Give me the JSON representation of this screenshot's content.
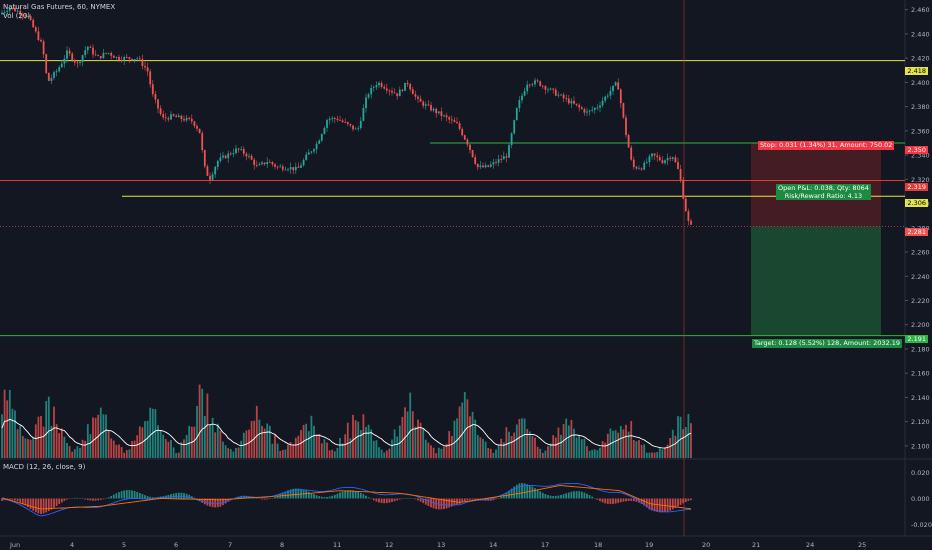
{
  "header": {
    "symbol": "Natural Gas Futures, 60, NYMEX",
    "volume_label": "Vol (20)"
  },
  "macd_label": "MACD (12, 26, close, 9)",
  "price_axis": {
    "ticks": [
      "2.460",
      "2.440",
      "2.420",
      "2.400",
      "2.380",
      "2.360",
      "2.340",
      "2.320",
      "2.300",
      "2.280",
      "2.260",
      "2.240",
      "2.220",
      "2.200",
      "2.180",
      "2.160",
      "2.140",
      "2.120",
      "2.100"
    ],
    "tick_values": [
      2.46,
      2.44,
      2.42,
      2.4,
      2.38,
      2.36,
      2.34,
      2.32,
      2.3,
      2.28,
      2.26,
      2.24,
      2.22,
      2.2,
      2.18,
      2.16,
      2.14,
      2.12,
      2.1
    ],
    "ymin": 2.09,
    "ymax": 2.468
  },
  "macd_axis": {
    "ticks": [
      "0.020",
      "0.000",
      "-0.020"
    ],
    "tick_values": [
      0.02,
      0.0,
      -0.02
    ]
  },
  "time_axis": {
    "labels": [
      "Jun",
      "4",
      "5",
      "6",
      "7",
      "8",
      "11",
      "12",
      "13",
      "14",
      "17",
      "18",
      "19",
      "20",
      "21",
      "24",
      "25"
    ]
  },
  "levels": {
    "upper_yellow": {
      "value": 2.418,
      "label": "2.418"
    },
    "red_line": {
      "value": 2.319,
      "label": "2.319"
    },
    "lower_yellow": {
      "value": 2.306,
      "label": "2.306"
    },
    "current_price": {
      "value": 2.281,
      "label": "2.281"
    },
    "stop": {
      "value": 2.35,
      "label": "2.350"
    },
    "target": {
      "value": 2.191,
      "label": "2.191"
    },
    "green_short": {
      "value": 2.35
    }
  },
  "position": {
    "stop_text": "Stop: 0.031 (1.34%) 31, Amount: 750.02",
    "open_text_1": "Open P&L: 0.038, Qty: 8064",
    "open_text_2": "Risk/Reward Ratio: 4.13",
    "target_text": "Target: 0.128 (5.52%) 128, Amount: 2032.19"
  },
  "colors": {
    "background": "#131722",
    "up": "#26a69a",
    "down": "#ef5350",
    "yellow": "#e3e34b",
    "red": "#e53935",
    "green": "#2fb344",
    "profit_zone": "#1b4d32",
    "loss_zone": "#4d1e25",
    "volume_ma": "#ffffff",
    "macd_line": "#2962ff",
    "signal_line": "#ff6d00"
  },
  "chart_data": {
    "type": "candlestick",
    "title": "Natural Gas Futures, 60, NYMEX",
    "anchors": [
      [
        0,
        2.455
      ],
      [
        12,
        2.462
      ],
      [
        30,
        2.455
      ],
      [
        45,
        2.43
      ],
      [
        50,
        2.4
      ],
      [
        60,
        2.41
      ],
      [
        70,
        2.425
      ],
      [
        80,
        2.415
      ],
      [
        90,
        2.43
      ],
      [
        100,
        2.42
      ],
      [
        110,
        2.425
      ],
      [
        120,
        2.42
      ],
      [
        130,
        2.42
      ],
      [
        140,
        2.42
      ],
      [
        150,
        2.41
      ],
      [
        155,
        2.39
      ],
      [
        165,
        2.37
      ],
      [
        175,
        2.372
      ],
      [
        185,
        2.37
      ],
      [
        195,
        2.368
      ],
      [
        202,
        2.36
      ],
      [
        207,
        2.33
      ],
      [
        212,
        2.32
      ],
      [
        220,
        2.335
      ],
      [
        230,
        2.34
      ],
      [
        240,
        2.345
      ],
      [
        250,
        2.34
      ],
      [
        260,
        2.33
      ],
      [
        270,
        2.335
      ],
      [
        280,
        2.33
      ],
      [
        290,
        2.33
      ],
      [
        300,
        2.328
      ],
      [
        310,
        2.34
      ],
      [
        320,
        2.35
      ],
      [
        330,
        2.37
      ],
      [
        340,
        2.37
      ],
      [
        350,
        2.365
      ],
      [
        360,
        2.36
      ],
      [
        370,
        2.39
      ],
      [
        380,
        2.4
      ],
      [
        390,
        2.395
      ],
      [
        400,
        2.39
      ],
      [
        410,
        2.4
      ],
      [
        420,
        2.385
      ],
      [
        430,
        2.38
      ],
      [
        440,
        2.375
      ],
      [
        450,
        2.37
      ],
      [
        460,
        2.365
      ],
      [
        470,
        2.35
      ],
      [
        480,
        2.33
      ],
      [
        490,
        2.33
      ],
      [
        500,
        2.335
      ],
      [
        510,
        2.34
      ],
      [
        520,
        2.38
      ],
      [
        530,
        2.4
      ],
      [
        540,
        2.4
      ],
      [
        550,
        2.395
      ],
      [
        560,
        2.39
      ],
      [
        570,
        2.385
      ],
      [
        580,
        2.38
      ],
      [
        590,
        2.375
      ],
      [
        600,
        2.38
      ],
      [
        610,
        2.39
      ],
      [
        620,
        2.4
      ],
      [
        628,
        2.36
      ],
      [
        635,
        2.33
      ],
      [
        645,
        2.33
      ],
      [
        655,
        2.34
      ],
      [
        665,
        2.335
      ],
      [
        675,
        2.34
      ],
      [
        682,
        2.325
      ],
      [
        687,
        2.3
      ],
      [
        692,
        2.281
      ]
    ],
    "vol_spikes": [
      [
        5,
        0.55
      ],
      [
        47,
        0.42
      ],
      [
        100,
        0.37
      ],
      [
        152,
        0.35
      ],
      [
        203,
        0.6
      ],
      [
        258,
        0.35
      ],
      [
        308,
        0.28
      ],
      [
        358,
        0.35
      ],
      [
        410,
        0.4
      ],
      [
        466,
        0.45
      ],
      [
        518,
        0.35
      ],
      [
        568,
        0.28
      ],
      [
        622,
        0.32
      ],
      [
        688,
        0.4
      ]
    ],
    "macd": [
      [
        0,
        0.0
      ],
      [
        40,
        -0.012
      ],
      [
        100,
        -0.005
      ],
      [
        160,
        0.002
      ],
      [
        220,
        -0.003
      ],
      [
        280,
        0.004
      ],
      [
        340,
        0.008
      ],
      [
        400,
        0.003
      ],
      [
        460,
        -0.006
      ],
      [
        520,
        0.008
      ],
      [
        560,
        0.012
      ],
      [
        620,
        0.005
      ],
      [
        650,
        -0.008
      ],
      [
        692,
        -0.01
      ]
    ],
    "signal": [
      [
        0,
        0.001
      ],
      [
        40,
        -0.008
      ],
      [
        100,
        -0.006
      ],
      [
        160,
        0.0
      ],
      [
        220,
        -0.001
      ],
      [
        280,
        0.002
      ],
      [
        340,
        0.006
      ],
      [
        400,
        0.004
      ],
      [
        460,
        -0.003
      ],
      [
        520,
        0.004
      ],
      [
        560,
        0.01
      ],
      [
        620,
        0.006
      ],
      [
        650,
        -0.004
      ],
      [
        692,
        -0.008
      ]
    ]
  }
}
